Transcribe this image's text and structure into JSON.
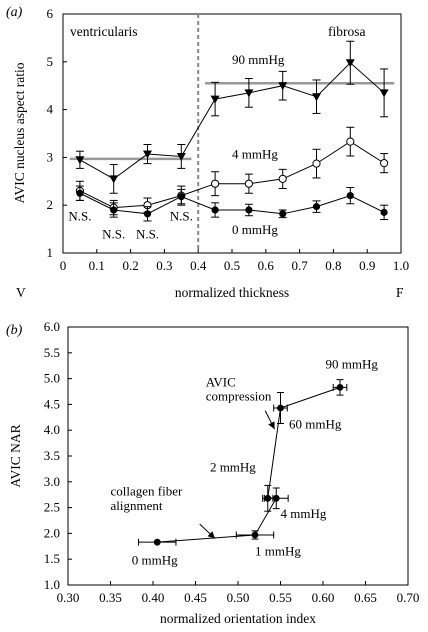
{
  "panels": [
    {
      "label": "(a)",
      "chart_data": {
        "type": "line",
        "xlabel": "normalized thickness",
        "ylabel": "AVIC nucleus aspect ratio",
        "xlim": [
          0,
          1.0
        ],
        "ylim": [
          1,
          6
        ],
        "xticks": [
          "0",
          "0.1",
          "0.2",
          "0.3",
          "0.4",
          "0.5",
          "0.6",
          "0.7",
          "0.8",
          "0.9",
          "1.0"
        ],
        "yticks": [
          "1",
          "2",
          "3",
          "4",
          "5",
          "6"
        ],
        "x_end_labels": {
          "left": "V",
          "right": "F"
        },
        "regions": {
          "left": "ventricularis",
          "right": "fibrosa",
          "divider_x": 0.4
        },
        "x": [
          0.05,
          0.15,
          0.25,
          0.35,
          0.45,
          0.55,
          0.65,
          0.75,
          0.85,
          0.95
        ],
        "series": [
          {
            "name": "90 mmHg",
            "marker": "triangle-down",
            "values": [
              2.95,
              2.55,
              3.07,
              3.02,
              4.22,
              4.35,
              4.5,
              4.27,
              4.98,
              4.35
            ],
            "errors": [
              0.18,
              0.3,
              0.2,
              0.25,
              0.35,
              0.3,
              0.3,
              0.35,
              0.45,
              0.5
            ]
          },
          {
            "name": "4 mmHg",
            "marker": "circle-open",
            "values": [
              2.3,
              1.95,
              2.0,
              2.2,
              2.45,
              2.45,
              2.55,
              2.87,
              3.33,
              2.88
            ],
            "errors": [
              0.2,
              0.15,
              0.15,
              0.2,
              0.25,
              0.2,
              0.2,
              0.3,
              0.3,
              0.2
            ]
          },
          {
            "name": "0 mmHg",
            "marker": "circle-filled",
            "values": [
              2.25,
              1.9,
              1.82,
              2.18,
              1.9,
              1.9,
              1.82,
              1.97,
              2.2,
              1.85
            ],
            "errors": [
              0.15,
              0.15,
              0.15,
              0.15,
              0.15,
              0.12,
              0.08,
              0.12,
              0.17,
              0.15
            ]
          }
        ],
        "reference_lines": [
          {
            "y": 2.97,
            "x_range": [
              0.02,
              0.38
            ],
            "color": "#999999"
          },
          {
            "y": 4.55,
            "x_range": [
              0.42,
              0.98
            ],
            "color": "#999999"
          }
        ],
        "annotations": [
          {
            "text": "90 mmHg",
            "x": 0.5,
            "y": 4.95
          },
          {
            "text": "4 mmHg",
            "x": 0.5,
            "y": 2.98
          },
          {
            "text": "0 mmHg",
            "x": 0.5,
            "y": 1.4
          },
          {
            "text": "N.S.",
            "x": 0.05,
            "y": 1.68
          },
          {
            "text": "N.S.",
            "x": 0.15,
            "y": 1.3
          },
          {
            "text": "N.S.",
            "x": 0.25,
            "y": 1.3
          },
          {
            "text": "N.S.",
            "x": 0.35,
            "y": 1.68
          }
        ]
      }
    },
    {
      "label": "(b)",
      "chart_data": {
        "type": "scatter",
        "xlabel": "normalized orientation index",
        "ylabel": "AVIC NAR",
        "xlim": [
          0.3,
          0.7
        ],
        "ylim": [
          1.0,
          6.0
        ],
        "xticks": [
          "0.30",
          "0.35",
          "0.40",
          "0.45",
          "0.50",
          "0.55",
          "0.60",
          "0.65",
          "0.70"
        ],
        "yticks": [
          "1.0",
          "1.5",
          "2.0",
          "2.5",
          "3.0",
          "3.5",
          "4.0",
          "4.5",
          "5.0",
          "5.5",
          "6.0"
        ],
        "points": [
          {
            "label": "0 mmHg",
            "x": 0.405,
            "y": 1.83,
            "xerr": 0.022,
            "yerr": 0.0
          },
          {
            "label": "1 mmHg",
            "x": 0.52,
            "y": 1.97,
            "xerr": 0.022,
            "yerr": 0.08
          },
          {
            "label": "4 mmHg",
            "x": 0.545,
            "y": 2.68,
            "xerr": 0.014,
            "yerr": 0.2
          },
          {
            "label": "2 mmHg",
            "x": 0.535,
            "y": 2.68,
            "xerr": 0.006,
            "yerr": 0.25
          },
          {
            "label": "60 mmHg",
            "x": 0.55,
            "y": 4.43,
            "xerr": 0.008,
            "yerr": 0.3
          },
          {
            "label": "90 mmHg",
            "x": 0.62,
            "y": 4.83,
            "xerr": 0.008,
            "yerr": 0.15
          }
        ],
        "annotations": [
          {
            "text": "90 mmHg",
            "x": 0.603,
            "y": 5.2
          },
          {
            "text": "60 mmHg",
            "x": 0.56,
            "y": 4.03
          },
          {
            "text": "AVIC",
            "x": 0.462,
            "y": 4.85
          },
          {
            "text": "compression",
            "x": 0.462,
            "y": 4.58
          },
          {
            "text": "2 mmHg",
            "x": 0.467,
            "y": 3.2
          },
          {
            "text": "4 mmHg",
            "x": 0.55,
            "y": 2.3
          },
          {
            "text": "collagen fiber",
            "x": 0.35,
            "y": 2.73
          },
          {
            "text": "alignment",
            "x": 0.35,
            "y": 2.45
          },
          {
            "text": "0 mmHg",
            "x": 0.375,
            "y": 1.4
          },
          {
            "text": "1 mmHg",
            "x": 0.52,
            "y": 1.57
          }
        ],
        "arrows": [
          {
            "from": [
              0.532,
              4.38
            ],
            "to": [
              0.543,
              4.02
            ]
          },
          {
            "from": [
              0.455,
              2.18
            ],
            "to": [
              0.473,
              1.9
            ]
          }
        ]
      }
    }
  ]
}
